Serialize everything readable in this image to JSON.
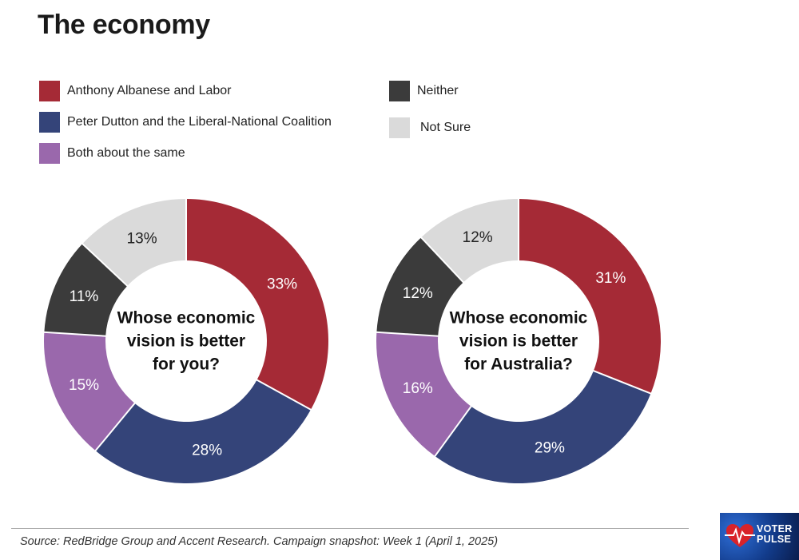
{
  "title": "The economy",
  "legend": [
    {
      "label": "Anthony Albanese and Labor",
      "color": "#a52a36"
    },
    {
      "label": "Peter Dutton and the Liberal-National Coalition",
      "color": "#344479"
    },
    {
      "label": "Both about the same",
      "color": "#9a68ac"
    },
    {
      "label": "Neither",
      "color": "#3b3b3b"
    },
    {
      "label": "Not Sure",
      "color": "#dadada"
    }
  ],
  "chart_data": [
    {
      "type": "pie",
      "variant": "donut",
      "title": "Whose economic vision is better for you?",
      "center_lines": [
        "Whose economic",
        "vision is better",
        "for you?"
      ],
      "categories": [
        "Anthony Albanese and Labor",
        "Peter Dutton and the Liberal-National Coalition",
        "Both about the same",
        "Neither",
        "Not Sure"
      ],
      "values": [
        33,
        28,
        15,
        11,
        13
      ],
      "labels": [
        "33%",
        "28%",
        "15%",
        "11%",
        "13%"
      ],
      "colors": [
        "#a52a36",
        "#344479",
        "#9a68ac",
        "#3b3b3b",
        "#dadada"
      ],
      "label_colors": [
        "#ffffff",
        "#ffffff",
        "#ffffff",
        "#ffffff",
        "#222222"
      ]
    },
    {
      "type": "pie",
      "variant": "donut",
      "title": "Whose economic vision is better for Australia?",
      "center_lines": [
        "Whose economic",
        "vision is better",
        "for Australia?"
      ],
      "categories": [
        "Anthony Albanese and Labor",
        "Peter Dutton and the Liberal-National Coalition",
        "Both about the same",
        "Neither",
        "Not Sure"
      ],
      "values": [
        31,
        29,
        16,
        12,
        12
      ],
      "labels": [
        "31%",
        "29%",
        "16%",
        "12%",
        "12%"
      ],
      "colors": [
        "#a52a36",
        "#344479",
        "#9a68ac",
        "#3b3b3b",
        "#dadada"
      ],
      "label_colors": [
        "#ffffff",
        "#ffffff",
        "#ffffff",
        "#ffffff",
        "#222222"
      ]
    }
  ],
  "source": "Source: RedBridge Group and Accent Research. Campaign snapshot: Week 1 (April 1, 2025)",
  "logo": {
    "line1": "VOTER",
    "line2": "PULSE",
    "icon": "heartbeat-icon"
  }
}
